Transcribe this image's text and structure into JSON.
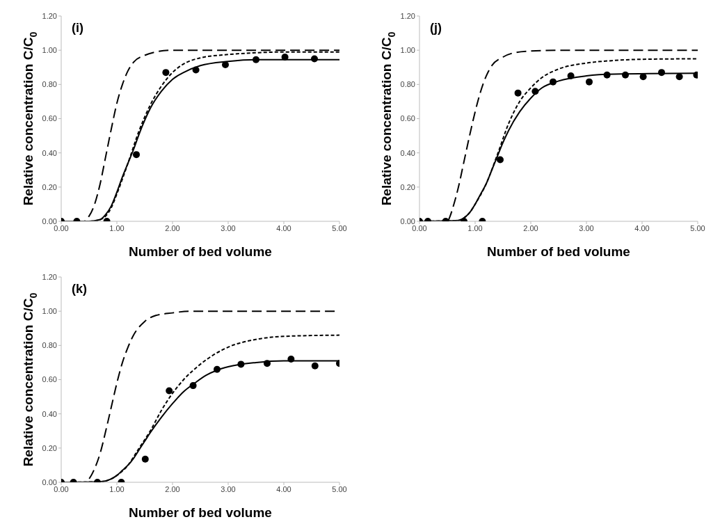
{
  "chart_data": [
    {
      "type": "line",
      "annotations": [
        "(i)"
      ],
      "xlabel": "Number of bed volume",
      "ylabel": "Relative concentration C/C$_{0}$",
      "xlim": [
        0,
        5
      ],
      "ylim": [
        0,
        1.2
      ],
      "xticks": [
        {
          "value": 0,
          "label": "0.00"
        },
        {
          "value": 1,
          "label": "1.00"
        },
        {
          "value": 2,
          "label": "2.00"
        },
        {
          "value": 3,
          "label": "3.00"
        },
        {
          "value": 4,
          "label": "4.00"
        },
        {
          "value": 5,
          "label": "5.00"
        }
      ],
      "yticks": [
        {
          "value": 0,
          "label": "0.00"
        },
        {
          "value": 0.2,
          "label": "0.20"
        },
        {
          "value": 0.4,
          "label": "0.40"
        },
        {
          "value": 0.6,
          "label": "0.60"
        },
        {
          "value": 0.8,
          "label": "0.80"
        },
        {
          "value": 1,
          "label": "1.00"
        },
        {
          "value": 1.2,
          "label": "1.20"
        }
      ],
      "grid": false,
      "legend": false,
      "series": [
        {
          "type": "scatter",
          "marker": "circle",
          "color": "#000000",
          "x": [
            0,
            0.28,
            0.82,
            1.35,
            1.88,
            2.42,
            2.95,
            3.5,
            4.02,
            4.55
          ],
          "values": [
            0,
            0,
            0,
            0.39,
            0.87,
            0.885,
            0.915,
            0.945,
            0.96,
            0.95
          ]
        },
        {
          "line_style": "solid",
          "color": "#000000",
          "x": [
            0,
            0.5,
            0.7,
            0.8,
            0.9,
            1.0,
            1.1,
            1.2,
            1.3,
            1.4,
            1.5,
            1.6,
            1.8,
            2.0,
            2.2,
            2.5,
            3.0,
            3.5,
            4.0,
            5.0
          ],
          "values": [
            0,
            0,
            0.01,
            0.04,
            0.09,
            0.17,
            0.26,
            0.34,
            0.42,
            0.51,
            0.59,
            0.66,
            0.76,
            0.83,
            0.87,
            0.91,
            0.935,
            0.945,
            0.945,
            0.945
          ]
        },
        {
          "line_style": "dotted",
          "color": "#000000",
          "x": [
            0,
            0.5,
            0.7,
            0.9,
            1.0,
            1.2,
            1.4,
            1.6,
            1.8,
            2.0,
            2.2,
            2.5,
            3.0,
            3.5,
            4.0,
            5.0
          ],
          "values": [
            0,
            0,
            0.01,
            0.08,
            0.16,
            0.34,
            0.53,
            0.68,
            0.79,
            0.87,
            0.92,
            0.955,
            0.975,
            0.985,
            0.99,
            0.99
          ]
        },
        {
          "line_style": "dashed",
          "color": "#000000",
          "x": [
            0,
            0.4,
            0.5,
            0.6,
            0.7,
            0.8,
            0.9,
            1.0,
            1.1,
            1.2,
            1.3,
            1.5,
            1.7,
            2.0,
            5.0
          ],
          "values": [
            0,
            0,
            0.03,
            0.1,
            0.22,
            0.38,
            0.54,
            0.69,
            0.8,
            0.88,
            0.93,
            0.97,
            0.99,
            1.0,
            1.0
          ]
        }
      ]
    },
    {
      "type": "line",
      "annotations": [
        "(j)"
      ],
      "xlabel": "Number of bed volume",
      "ylabel": "Relative concentration C/C$_{0}$",
      "xlim": [
        0,
        5
      ],
      "ylim": [
        0,
        1.2
      ],
      "xticks": [
        {
          "value": 0,
          "label": "0.00"
        },
        {
          "value": 1,
          "label": "1.00"
        },
        {
          "value": 2,
          "label": "2.00"
        },
        {
          "value": 3,
          "label": "3.00"
        },
        {
          "value": 4,
          "label": "4.00"
        },
        {
          "value": 5,
          "label": "5.00"
        }
      ],
      "yticks": [
        {
          "value": 0,
          "label": "0.00"
        },
        {
          "value": 0.2,
          "label": "0.20"
        },
        {
          "value": 0.4,
          "label": "0.40"
        },
        {
          "value": 0.6,
          "label": "0.60"
        },
        {
          "value": 0.8,
          "label": "0.80"
        },
        {
          "value": 1,
          "label": "1.00"
        },
        {
          "value": 1.2,
          "label": "1.20"
        }
      ],
      "grid": false,
      "legend": false,
      "series": [
        {
          "type": "scatter",
          "marker": "circle",
          "color": "#000000",
          "x": [
            0,
            0.15,
            0.47,
            0.8,
            1.13,
            1.45,
            1.77,
            2.08,
            2.4,
            2.72,
            3.05,
            3.37,
            3.7,
            4.02,
            4.35,
            4.67,
            4.98
          ],
          "values": [
            0,
            0,
            0,
            0,
            0,
            0.36,
            0.75,
            0.76,
            0.815,
            0.85,
            0.815,
            0.855,
            0.855,
            0.845,
            0.87,
            0.845,
            0.855
          ]
        },
        {
          "line_style": "solid",
          "color": "#000000",
          "x": [
            0,
            0.7,
            0.8,
            0.9,
            1.0,
            1.1,
            1.2,
            1.3,
            1.4,
            1.5,
            1.6,
            1.8,
            2.0,
            2.2,
            2.5,
            3.0,
            3.5,
            5.0
          ],
          "values": [
            0,
            0.005,
            0.02,
            0.05,
            0.1,
            0.16,
            0.22,
            0.3,
            0.38,
            0.46,
            0.53,
            0.64,
            0.72,
            0.78,
            0.82,
            0.85,
            0.86,
            0.865
          ]
        },
        {
          "line_style": "dotted",
          "color": "#000000",
          "x": [
            0,
            0.7,
            0.8,
            0.9,
            1.0,
            1.2,
            1.4,
            1.6,
            1.8,
            2.0,
            2.2,
            2.5,
            3.0,
            3.5,
            4.0,
            5.0
          ],
          "values": [
            0,
            0.005,
            0.02,
            0.05,
            0.1,
            0.22,
            0.39,
            0.57,
            0.7,
            0.78,
            0.84,
            0.89,
            0.925,
            0.94,
            0.947,
            0.95
          ]
        },
        {
          "line_style": "dashed",
          "color": "#000000",
          "x": [
            0,
            0.5,
            0.55,
            0.6,
            0.7,
            0.8,
            0.9,
            1.0,
            1.1,
            1.2,
            1.3,
            1.5,
            1.7,
            2.0,
            2.5,
            5.0
          ],
          "values": [
            0,
            0,
            0.03,
            0.08,
            0.2,
            0.35,
            0.5,
            0.64,
            0.76,
            0.85,
            0.91,
            0.96,
            0.985,
            0.995,
            1.0,
            1.0
          ]
        }
      ]
    },
    {
      "type": "line",
      "annotations": [
        "(k)"
      ],
      "xlabel": "Number of bed volume",
      "ylabel": "Relative concentration C/C$_{0}$",
      "xlim": [
        0,
        5
      ],
      "ylim": [
        0,
        1.2
      ],
      "xticks": [
        {
          "value": 0,
          "label": "0.00"
        },
        {
          "value": 1,
          "label": "1.00"
        },
        {
          "value": 2,
          "label": "2.00"
        },
        {
          "value": 3,
          "label": "3.00"
        },
        {
          "value": 4,
          "label": "4.00"
        },
        {
          "value": 5,
          "label": "5.00"
        }
      ],
      "yticks": [
        {
          "value": 0,
          "label": "0.00"
        },
        {
          "value": 0.2,
          "label": "0.20"
        },
        {
          "value": 0.4,
          "label": "0.40"
        },
        {
          "value": 0.6,
          "label": "0.60"
        },
        {
          "value": 0.8,
          "label": "0.80"
        },
        {
          "value": 1,
          "label": "1.00"
        },
        {
          "value": 1.2,
          "label": "1.20"
        }
      ],
      "grid": false,
      "legend": false,
      "series": [
        {
          "type": "scatter",
          "marker": "circle",
          "color": "#000000",
          "x": [
            0,
            0.22,
            0.65,
            1.08,
            1.51,
            1.94,
            2.37,
            2.8,
            3.23,
            3.7,
            4.13,
            4.56,
            5.0
          ],
          "values": [
            0,
            0,
            0,
            0,
            0.135,
            0.535,
            0.565,
            0.66,
            0.69,
            0.695,
            0.72,
            0.68,
            0.695
          ]
        },
        {
          "line_style": "solid",
          "color": "#000000",
          "x": [
            0,
            0.7,
            0.9,
            1.0,
            1.1,
            1.2,
            1.3,
            1.4,
            1.5,
            1.6,
            1.8,
            2.0,
            2.2,
            2.4,
            2.6,
            2.8,
            3.0,
            3.5,
            4.0,
            5.0
          ],
          "values": [
            0,
            0.003,
            0.02,
            0.04,
            0.07,
            0.1,
            0.14,
            0.19,
            0.24,
            0.29,
            0.38,
            0.46,
            0.53,
            0.58,
            0.625,
            0.655,
            0.675,
            0.7,
            0.71,
            0.71
          ]
        },
        {
          "line_style": "dotted",
          "color": "#000000",
          "x": [
            0,
            0.7,
            0.9,
            1.0,
            1.2,
            1.4,
            1.6,
            1.8,
            2.0,
            2.2,
            2.5,
            3.0,
            3.5,
            4.0,
            5.0
          ],
          "values": [
            0,
            0.003,
            0.02,
            0.04,
            0.1,
            0.2,
            0.3,
            0.42,
            0.52,
            0.6,
            0.69,
            0.79,
            0.835,
            0.853,
            0.86
          ]
        },
        {
          "line_style": "dashed",
          "color": "#000000",
          "x": [
            0,
            0.4,
            0.5,
            0.6,
            0.7,
            0.8,
            0.9,
            1.0,
            1.1,
            1.2,
            1.3,
            1.5,
            1.7,
            2.0,
            2.3,
            5.0
          ],
          "values": [
            0,
            0,
            0.02,
            0.08,
            0.17,
            0.3,
            0.44,
            0.58,
            0.7,
            0.79,
            0.86,
            0.94,
            0.975,
            0.99,
            1.0,
            1.0
          ]
        }
      ]
    }
  ]
}
